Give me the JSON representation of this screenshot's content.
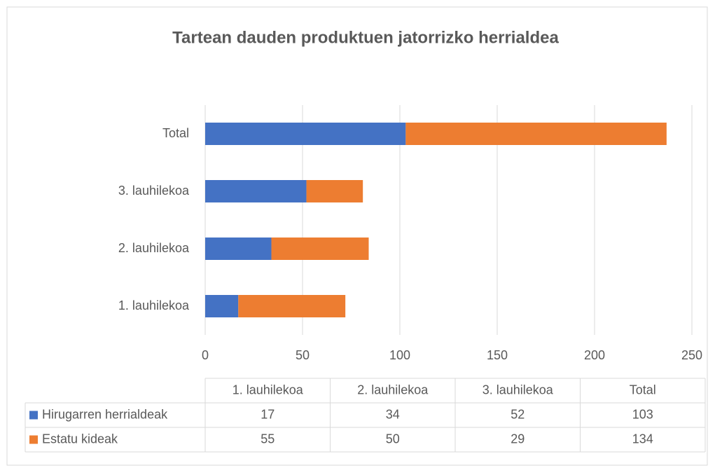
{
  "chart_data": {
    "type": "stacked-barh",
    "title": "Tartean dauden produktuen jatorrizko herrialdea",
    "categories": [
      "1. lauhilekoa",
      "2. lauhilekoa",
      "3. lauhilekoa",
      "Total"
    ],
    "series": [
      {
        "name": "Hirugarren herrialdeak",
        "color": "#4472c4",
        "values": [
          17,
          34,
          52,
          103
        ]
      },
      {
        "name": "Estatu kideak",
        "color": "#ed7d31",
        "values": [
          55,
          50,
          29,
          134
        ]
      }
    ],
    "xlim": [
      0,
      250
    ],
    "xticks": [
      0,
      50,
      100,
      150,
      200,
      250
    ],
    "grid": true
  }
}
